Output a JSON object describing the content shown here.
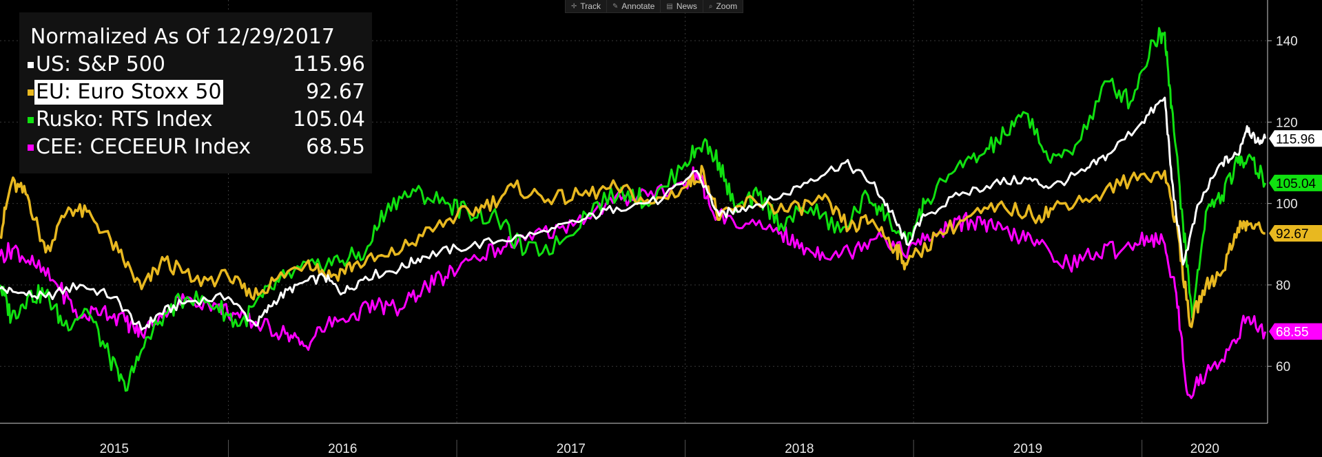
{
  "toolbar": {
    "items": [
      {
        "label": "Track",
        "icon": "crosshair-icon"
      },
      {
        "label": "Annotate",
        "icon": "pencil-icon"
      },
      {
        "label": "News",
        "icon": "news-icon"
      },
      {
        "label": "Zoom",
        "icon": "magnifier-icon"
      }
    ]
  },
  "legend": {
    "title": "Normalized As Of 12/29/2017",
    "entries": [
      {
        "name": "US: S&P 500",
        "value": "115.96",
        "color": "#ffffff"
      },
      {
        "name": "EU: Euro Stoxx 50",
        "value": "92.67",
        "color": "#e8b820"
      },
      {
        "name": "Rusko: RTS Index",
        "value": "105.04",
        "color": "#10e010"
      },
      {
        "name": "CEE: CECEEUR Index",
        "value": "68.55",
        "color": "#ff00ff"
      }
    ]
  },
  "chart_data": {
    "type": "line",
    "title": "Normalized As Of 12/29/2017",
    "x_ticks": [
      "2015",
      "2016",
      "2017",
      "2018",
      "2019",
      "2020"
    ],
    "x_range": [
      2015.0,
      2020.55
    ],
    "y_ticks": [
      60,
      80,
      100,
      120,
      140
    ],
    "ylim": [
      46,
      150
    ],
    "grid": true,
    "legend_position": "top-left",
    "series": [
      {
        "name": "US: S&P 500",
        "color": "#ffffff",
        "last_value": "115.96",
        "points": [
          [
            2015.0,
            79
          ],
          [
            2015.08,
            78
          ],
          [
            2015.2,
            77
          ],
          [
            2015.35,
            80
          ],
          [
            2015.5,
            77
          ],
          [
            2015.62,
            69
          ],
          [
            2015.7,
            73
          ],
          [
            2015.82,
            76
          ],
          [
            2016.0,
            77
          ],
          [
            2016.12,
            70
          ],
          [
            2016.2,
            76
          ],
          [
            2016.3,
            80
          ],
          [
            2016.42,
            82
          ],
          [
            2016.5,
            78
          ],
          [
            2016.6,
            82
          ],
          [
            2016.75,
            84
          ],
          [
            2016.85,
            87
          ],
          [
            2017.0,
            89
          ],
          [
            2017.2,
            91
          ],
          [
            2017.4,
            93
          ],
          [
            2017.55,
            96
          ],
          [
            2017.7,
            99
          ],
          [
            2017.9,
            101
          ],
          [
            2018.05,
            108
          ],
          [
            2018.15,
            97
          ],
          [
            2018.25,
            99
          ],
          [
            2018.4,
            101
          ],
          [
            2018.55,
            106
          ],
          [
            2018.7,
            110
          ],
          [
            2018.82,
            105
          ],
          [
            2018.9,
            98
          ],
          [
            2018.97,
            90
          ],
          [
            2019.05,
            97
          ],
          [
            2019.2,
            102
          ],
          [
            2019.35,
            105
          ],
          [
            2019.5,
            106
          ],
          [
            2019.6,
            104
          ],
          [
            2019.75,
            108
          ],
          [
            2019.85,
            112
          ],
          [
            2020.0,
            120
          ],
          [
            2020.1,
            126
          ],
          [
            2020.13,
            106
          ],
          [
            2020.18,
            85
          ],
          [
            2020.25,
            100
          ],
          [
            2020.35,
            110
          ],
          [
            2020.42,
            112
          ],
          [
            2020.46,
            119
          ],
          [
            2020.5,
            115
          ],
          [
            2020.54,
            115.96
          ]
        ]
      },
      {
        "name": "EU: Euro Stoxx 50",
        "color": "#e8b820",
        "last_value": "92.67",
        "points": [
          [
            2015.0,
            92
          ],
          [
            2015.05,
            105
          ],
          [
            2015.12,
            102
          ],
          [
            2015.2,
            88
          ],
          [
            2015.3,
            99
          ],
          [
            2015.4,
            97
          ],
          [
            2015.52,
            88
          ],
          [
            2015.62,
            79
          ],
          [
            2015.72,
            86
          ],
          [
            2015.85,
            81
          ],
          [
            2016.0,
            82
          ],
          [
            2016.1,
            77
          ],
          [
            2016.2,
            81
          ],
          [
            2016.35,
            86
          ],
          [
            2016.45,
            82
          ],
          [
            2016.55,
            85
          ],
          [
            2016.7,
            87
          ],
          [
            2016.85,
            92
          ],
          [
            2017.0,
            97
          ],
          [
            2017.12,
            99
          ],
          [
            2017.25,
            104
          ],
          [
            2017.4,
            101
          ],
          [
            2017.55,
            102
          ],
          [
            2017.7,
            104
          ],
          [
            2017.85,
            100
          ],
          [
            2018.0,
            104
          ],
          [
            2018.08,
            108
          ],
          [
            2018.15,
            96
          ],
          [
            2018.3,
            101
          ],
          [
            2018.45,
            98
          ],
          [
            2018.6,
            101
          ],
          [
            2018.72,
            94
          ],
          [
            2018.82,
            96
          ],
          [
            2018.92,
            89
          ],
          [
            2018.97,
            85
          ],
          [
            2019.1,
            92
          ],
          [
            2019.25,
            97
          ],
          [
            2019.4,
            99
          ],
          [
            2019.55,
            97
          ],
          [
            2019.65,
            100
          ],
          [
            2019.8,
            102
          ],
          [
            2019.95,
            106
          ],
          [
            2020.1,
            108
          ],
          [
            2020.16,
            92
          ],
          [
            2020.21,
            70
          ],
          [
            2020.28,
            80
          ],
          [
            2020.35,
            83
          ],
          [
            2020.42,
            94
          ],
          [
            2020.47,
            95
          ],
          [
            2020.54,
            92.67
          ]
        ]
      },
      {
        "name": "Rusko: RTS Index",
        "color": "#10e010",
        "last_value": "105.04",
        "points": [
          [
            2015.0,
            80
          ],
          [
            2015.05,
            72
          ],
          [
            2015.12,
            77
          ],
          [
            2015.2,
            78
          ],
          [
            2015.28,
            70
          ],
          [
            2015.38,
            74
          ],
          [
            2015.48,
            62
          ],
          [
            2015.55,
            54
          ],
          [
            2015.62,
            64
          ],
          [
            2015.72,
            73
          ],
          [
            2015.82,
            77
          ],
          [
            2015.95,
            75
          ],
          [
            2016.05,
            70
          ],
          [
            2016.15,
            77
          ],
          [
            2016.25,
            82
          ],
          [
            2016.38,
            85
          ],
          [
            2016.5,
            86
          ],
          [
            2016.6,
            88
          ],
          [
            2016.7,
            100
          ],
          [
            2016.82,
            103
          ],
          [
            2016.95,
            100
          ],
          [
            2017.05,
            98
          ],
          [
            2017.18,
            96
          ],
          [
            2017.3,
            88
          ],
          [
            2017.45,
            90
          ],
          [
            2017.6,
            100
          ],
          [
            2017.75,
            103
          ],
          [
            2017.85,
            100
          ],
          [
            2018.0,
            110
          ],
          [
            2018.08,
            115
          ],
          [
            2018.15,
            110
          ],
          [
            2018.22,
            98
          ],
          [
            2018.32,
            102
          ],
          [
            2018.42,
            95
          ],
          [
            2018.55,
            99
          ],
          [
            2018.68,
            93
          ],
          [
            2018.8,
            102
          ],
          [
            2018.88,
            97
          ],
          [
            2018.97,
            90
          ],
          [
            2019.05,
            100
          ],
          [
            2019.18,
            108
          ],
          [
            2019.3,
            112
          ],
          [
            2019.4,
            117
          ],
          [
            2019.5,
            122
          ],
          [
            2019.6,
            110
          ],
          [
            2019.72,
            115
          ],
          [
            2019.85,
            130
          ],
          [
            2019.95,
            125
          ],
          [
            2020.05,
            140
          ],
          [
            2020.1,
            142
          ],
          [
            2020.13,
            124
          ],
          [
            2020.18,
            95
          ],
          [
            2020.22,
            72
          ],
          [
            2020.28,
            98
          ],
          [
            2020.35,
            102
          ],
          [
            2020.42,
            110
          ],
          [
            2020.47,
            112
          ],
          [
            2020.54,
            105.04
          ]
        ]
      },
      {
        "name": "CEE: CECEEUR Index",
        "color": "#ff00ff",
        "last_value": "68.55",
        "points": [
          [
            2015.0,
            87
          ],
          [
            2015.06,
            89
          ],
          [
            2015.15,
            85
          ],
          [
            2015.25,
            80
          ],
          [
            2015.35,
            72
          ],
          [
            2015.45,
            74
          ],
          [
            2015.55,
            71
          ],
          [
            2015.62,
            68
          ],
          [
            2015.72,
            74
          ],
          [
            2015.82,
            77
          ],
          [
            2015.95,
            75
          ],
          [
            2016.05,
            72
          ],
          [
            2016.15,
            70
          ],
          [
            2016.25,
            68
          ],
          [
            2016.33,
            65
          ],
          [
            2016.43,
            70
          ],
          [
            2016.55,
            73
          ],
          [
            2016.65,
            75
          ],
          [
            2016.75,
            74
          ],
          [
            2016.85,
            79
          ],
          [
            2016.95,
            82
          ],
          [
            2017.05,
            86
          ],
          [
            2017.18,
            89
          ],
          [
            2017.3,
            91
          ],
          [
            2017.45,
            94
          ],
          [
            2017.6,
            98
          ],
          [
            2017.72,
            101
          ],
          [
            2017.85,
            103
          ],
          [
            2018.0,
            104
          ],
          [
            2018.05,
            108
          ],
          [
            2018.12,
            98
          ],
          [
            2018.25,
            94
          ],
          [
            2018.4,
            94
          ],
          [
            2018.5,
            89
          ],
          [
            2018.6,
            88
          ],
          [
            2018.72,
            88
          ],
          [
            2018.85,
            93
          ],
          [
            2018.95,
            88
          ],
          [
            2019.05,
            91
          ],
          [
            2019.15,
            94
          ],
          [
            2019.25,
            96
          ],
          [
            2019.35,
            94
          ],
          [
            2019.45,
            92
          ],
          [
            2019.55,
            90
          ],
          [
            2019.68,
            85
          ],
          [
            2019.8,
            88
          ],
          [
            2019.92,
            89
          ],
          [
            2020.02,
            92
          ],
          [
            2020.1,
            90
          ],
          [
            2020.15,
            78
          ],
          [
            2020.2,
            53
          ],
          [
            2020.28,
            58
          ],
          [
            2020.38,
            64
          ],
          [
            2020.46,
            72
          ],
          [
            2020.54,
            68.55
          ]
        ]
      }
    ]
  }
}
